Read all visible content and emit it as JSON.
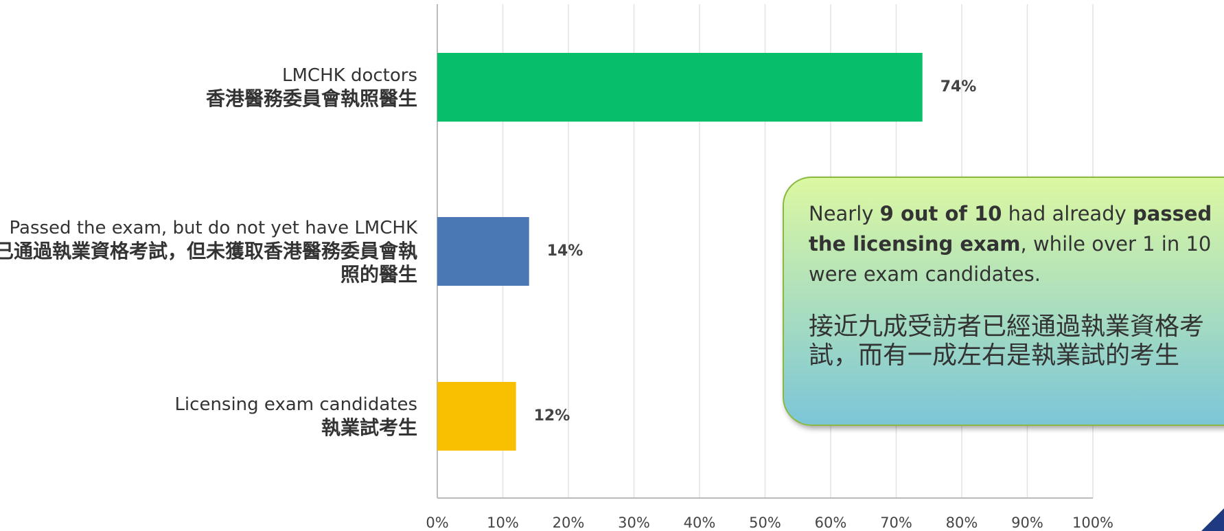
{
  "chart_data": {
    "type": "barh",
    "categories": [
      [
        "LMCHK doctors",
        "香港醫務委員會執照醫生"
      ],
      [
        "Passed the exam, but do not yet have LMCHK",
        "已通過執業資格考試，但未獲取香港醫務委員會執照的醫生"
      ],
      [
        "Licensing exam candidates",
        "執業試考生"
      ]
    ],
    "values": [
      74,
      14,
      12
    ],
    "value_labels": [
      "74%",
      "14%",
      "12%"
    ],
    "colors": [
      "#07bf6a",
      "#4a78b5",
      "#f8bf00"
    ],
    "xlim": [
      0,
      100
    ],
    "xticks": [
      {
        "value": 0,
        "label": "0%"
      },
      {
        "value": 10,
        "label": "10%"
      },
      {
        "value": 20,
        "label": "20%"
      },
      {
        "value": 30,
        "label": "30%"
      },
      {
        "value": 40,
        "label": "40%"
      },
      {
        "value": 50,
        "label": "50%"
      },
      {
        "value": 60,
        "label": "60%"
      },
      {
        "value": 70,
        "label": "70%"
      },
      {
        "value": 80,
        "label": "80%"
      },
      {
        "value": 90,
        "label": "90%"
      },
      {
        "value": 100,
        "label": "100%"
      }
    ],
    "grid": true,
    "annotation": {
      "en": [
        "Nearly ",
        "9 out of 10",
        " had already ",
        "passed the licensing exam",
        ", while over 1 in 10 were exam candidates."
      ],
      "zh": "接近九成受訪者已經通過執業資格考試，而有一成左右是執業試的考生"
    }
  }
}
